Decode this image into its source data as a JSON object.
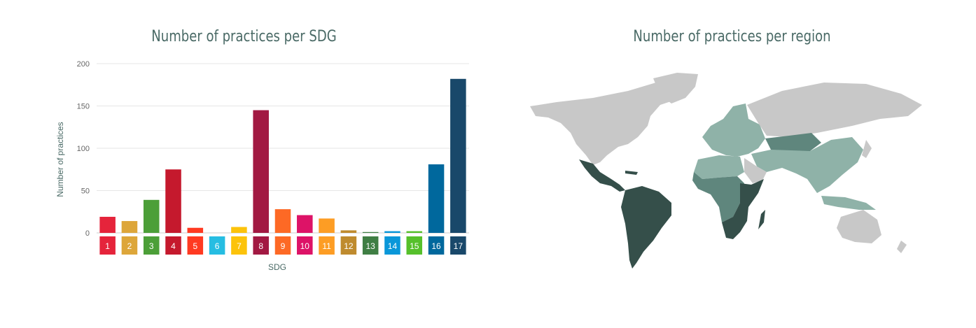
{
  "panels": {
    "sdg_title": "Number of practices per SDG",
    "region_title": "Number of practices per region"
  },
  "chart_data": [
    {
      "type": "bar",
      "title": "Number of practices per SDG",
      "xlabel": "SDG",
      "ylabel": "Number of practices",
      "ylim": [
        0,
        200
      ],
      "yticks": [
        "0",
        "50",
        "100",
        "150",
        "200"
      ],
      "categories": [
        "1",
        "2",
        "3",
        "4",
        "5",
        "6",
        "7",
        "8",
        "9",
        "10",
        "11",
        "12",
        "13",
        "14",
        "15",
        "16",
        "17"
      ],
      "values": [
        19,
        14,
        39,
        75,
        6,
        0,
        7,
        145,
        28,
        21,
        17,
        3,
        1,
        2,
        2,
        81,
        182
      ],
      "colors": [
        "#e5243b",
        "#dda63a",
        "#4c9f38",
        "#c5192d",
        "#ff3a21",
        "#26bde2",
        "#fcc30b",
        "#a21942",
        "#fd6925",
        "#dd1367",
        "#fd9d24",
        "#bf8b2e",
        "#3f7e44",
        "#0a97d9",
        "#56c02b",
        "#00689d",
        "#19486a"
      ],
      "grid": true,
      "legend": "none"
    },
    {
      "type": "heatmap",
      "title": "Number of practices per region",
      "map": "world-choropleth",
      "colors": {
        "none": "#c8c8c8",
        "low": "#8fb2a8",
        "medium": "#5f867d",
        "high": "#354f4a"
      }
    }
  ]
}
